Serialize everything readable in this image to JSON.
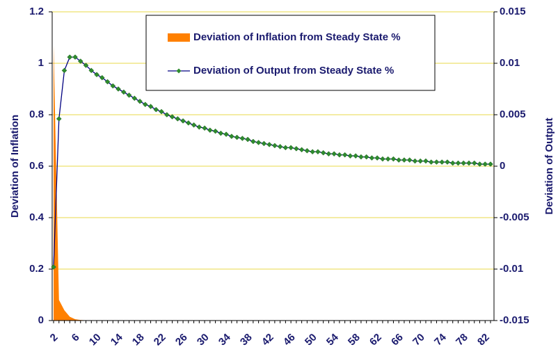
{
  "chart_data": {
    "type": "area-line",
    "y_label": "Deviation of Inflation",
    "y2_label": "Deviation of Output",
    "categories": [
      2,
      null,
      null,
      null,
      6,
      null,
      null,
      null,
      10,
      null,
      null,
      null,
      14,
      null,
      null,
      null,
      18,
      null,
      null,
      null,
      22,
      null,
      null,
      null,
      26,
      null,
      null,
      null,
      30,
      null,
      null,
      null,
      34,
      null,
      null,
      null,
      38,
      null,
      null,
      null,
      42,
      null,
      null,
      null,
      46,
      null,
      null,
      null,
      50,
      null,
      null,
      null,
      54,
      null,
      null,
      null,
      58,
      null,
      null,
      null,
      62,
      null,
      null,
      null,
      66,
      null,
      null,
      null,
      70,
      null,
      null,
      null,
      74,
      null,
      null,
      null,
      78,
      null,
      null,
      null,
      82,
      null
    ],
    "series": [
      {
        "name": "Deviation of Inflation from Steady State %",
        "color": "#ff8000",
        "axis": "y",
        "values": [
          1.07,
          0.08,
          0.04,
          0.015,
          0.005,
          0.002,
          0.001,
          0,
          0,
          0,
          0,
          0,
          0,
          0,
          0,
          0,
          0,
          0,
          0,
          0,
          0,
          0,
          0,
          0,
          0,
          0,
          0,
          0,
          0,
          0,
          0,
          0,
          0,
          0,
          0,
          0,
          0,
          0,
          0,
          0,
          0,
          0,
          0,
          0,
          0,
          0,
          0,
          0,
          0,
          0,
          0,
          0,
          0,
          0,
          0,
          0,
          0,
          0,
          0,
          0,
          0,
          0,
          0,
          0,
          0,
          0,
          0,
          0,
          0,
          0,
          0,
          0,
          0,
          0,
          0,
          0,
          0,
          0,
          0,
          0,
          0,
          0
        ]
      },
      {
        "name": "Deviation of Output from Steady State %",
        "color": "#000080",
        "marker_color": "#2e8b2e",
        "axis": "y2",
        "values": [
          -0.0098,
          0.0046,
          0.0093,
          0.0106,
          0.0106,
          0.0102,
          0.0098,
          0.0093,
          0.0089,
          0.0086,
          0.0082,
          0.0078,
          0.0075,
          0.0072,
          0.0069,
          0.0066,
          0.0063,
          0.006,
          0.0058,
          0.0055,
          0.0053,
          0.005,
          0.0048,
          0.0046,
          0.0044,
          0.0042,
          0.004,
          0.0038,
          0.0037,
          0.0035,
          0.0034,
          0.0032,
          0.0031,
          0.0029,
          0.0028,
          0.0027,
          0.0026,
          0.0024,
          0.0023,
          0.0022,
          0.0021,
          0.002,
          0.0019,
          0.0018,
          0.0018,
          0.0017,
          0.0016,
          0.0015,
          0.0014,
          0.0014,
          0.0013,
          0.0012,
          0.0012,
          0.0011,
          0.0011,
          0.001,
          0.001,
          0.0009,
          0.0009,
          0.0008,
          0.0008,
          0.0007,
          0.0007,
          0.0007,
          0.0006,
          0.0006,
          0.0006,
          0.0005,
          0.0005,
          0.0005,
          0.0004,
          0.0004,
          0.0004,
          0.0004,
          0.0003,
          0.0003,
          0.0003,
          0.0003,
          0.0003,
          0.0002,
          0.0002,
          0.0002
        ]
      }
    ],
    "ylim": [
      0,
      1.2
    ],
    "yticks": [
      0,
      0.2,
      0.4,
      0.6,
      0.8,
      1,
      1.2
    ],
    "y2lim": [
      -0.015,
      0.015
    ],
    "y2ticks": [
      -0.015,
      -0.01,
      -0.005,
      0,
      0.005,
      0.01,
      0.015
    ],
    "grid": true,
    "grid_color": "#e8d84a"
  }
}
